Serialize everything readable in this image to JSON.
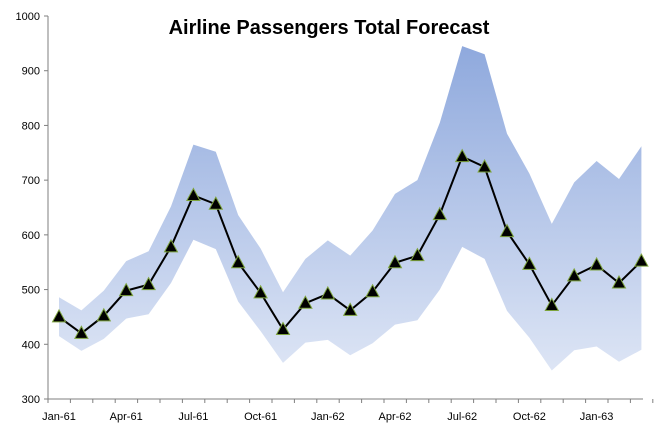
{
  "chart_data": {
    "type": "line",
    "title": "Airline Passengers Total Forecast",
    "xlabel": "",
    "ylabel": "",
    "ylim": [
      300,
      1000
    ],
    "yticks": [
      300,
      400,
      500,
      600,
      700,
      800,
      900,
      1000
    ],
    "grid": false,
    "legend": "none",
    "x": [
      "Jan-61",
      "Feb-61",
      "Mar-61",
      "Apr-61",
      "May-61",
      "Jun-61",
      "Jul-61",
      "Aug-61",
      "Sep-61",
      "Oct-61",
      "Nov-61",
      "Dec-61",
      "Jan-62",
      "Feb-62",
      "Mar-62",
      "Apr-62",
      "May-62",
      "Jun-62",
      "Jul-62",
      "Aug-62",
      "Sep-62",
      "Oct-62",
      "Nov-62",
      "Dec-62",
      "Jan-63",
      "Feb-63",
      "Mar-63"
    ],
    "xtick_labels": [
      "Jan-61",
      "Apr-61",
      "Jul-61",
      "Oct-61",
      "Jan-62",
      "Apr-62",
      "Jul-62",
      "Oct-62",
      "Jan-63"
    ],
    "series": [
      {
        "values": [
          450,
          420,
          452,
          498,
          509,
          578,
          672,
          656,
          549,
          494,
          427,
          475,
          492,
          462,
          496,
          549,
          562,
          637,
          743,
          724,
          606,
          546,
          471,
          525,
          545,
          512,
          552
        ],
        "color": "#000000",
        "marker": "triangle"
      }
    ],
    "band": {
      "upper": [
        486,
        462,
        498,
        552,
        570,
        652,
        765,
        752,
        636,
        575,
        495,
        556,
        590,
        562,
        608,
        675,
        700,
        805,
        945,
        930,
        785,
        712,
        620,
        696,
        735,
        702,
        762
      ],
      "lower": [
        415,
        388,
        410,
        447,
        455,
        512,
        591,
        574,
        478,
        424,
        366,
        403,
        408,
        380,
        402,
        436,
        444,
        500,
        578,
        556,
        461,
        412,
        352,
        389,
        396,
        368,
        390
      ],
      "color_top": "#8fa9dd",
      "color_bottom": "#dde5f5"
    }
  }
}
